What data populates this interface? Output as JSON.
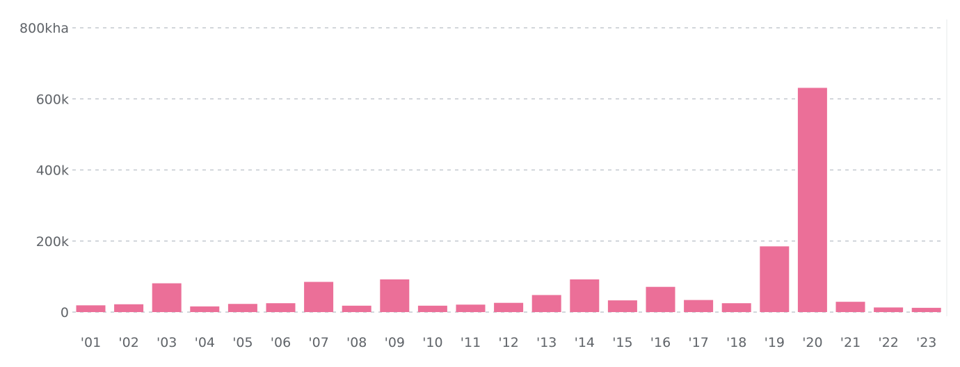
{
  "chart_data": {
    "type": "bar",
    "title": "",
    "xlabel": "",
    "ylabel": "",
    "categories": [
      "'01",
      "'02",
      "'03",
      "'04",
      "'05",
      "'06",
      "'07",
      "'08",
      "'09",
      "'10",
      "'11",
      "'12",
      "'13",
      "'14",
      "'15",
      "'16",
      "'17",
      "'18",
      "'19",
      "'20",
      "'21",
      "'22",
      "'23"
    ],
    "values": [
      19000,
      22000,
      81000,
      16000,
      23000,
      25000,
      85000,
      18000,
      92000,
      18000,
      21000,
      26000,
      48000,
      92000,
      33000,
      71000,
      34000,
      25000,
      185000,
      631000,
      29000,
      13000,
      12000
    ],
    "ylim": [
      0,
      800000
    ],
    "y_ticks": [
      {
        "value": 800000,
        "label": "800kha"
      },
      {
        "value": 600000,
        "label": "600k"
      },
      {
        "value": 400000,
        "label": "400k"
      },
      {
        "value": 200000,
        "label": "200k"
      },
      {
        "value": 0,
        "label": "0"
      }
    ],
    "grid": true,
    "bar_color": "#eb6f98",
    "grid_color": "#c3c8cf",
    "text_color": "#5f6368"
  }
}
